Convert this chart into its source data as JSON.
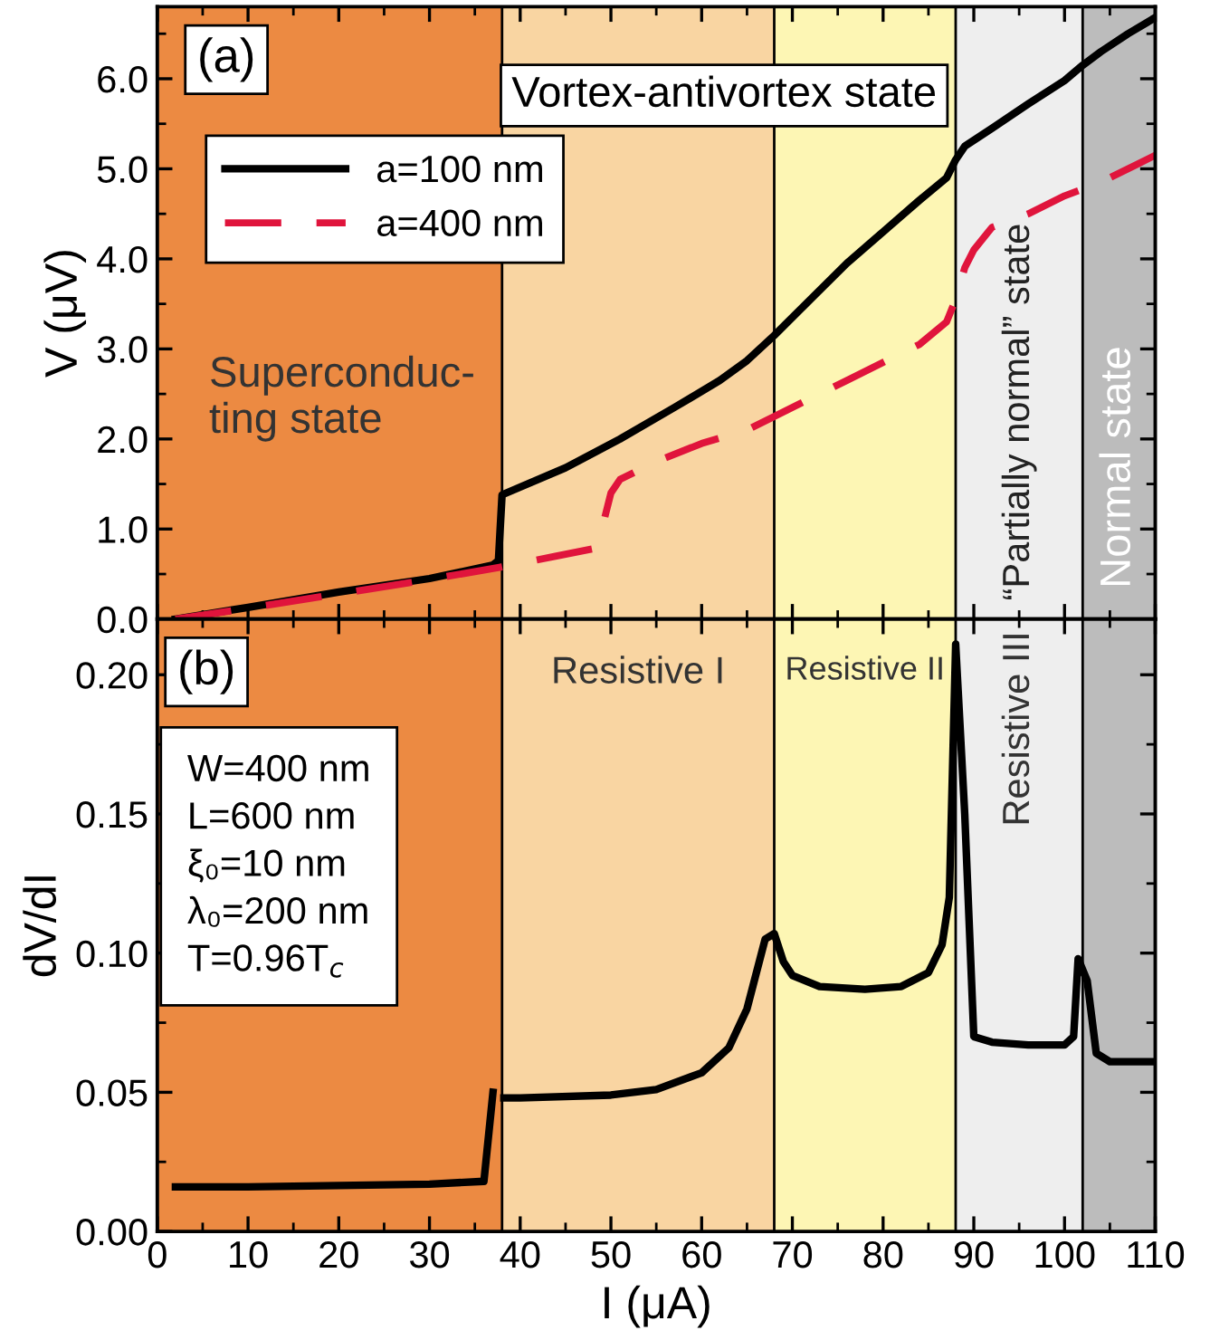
{
  "chart_data": [
    {
      "type": "line",
      "ylabel": "V (μV)",
      "xlim": [
        0,
        110
      ],
      "ylim": [
        0,
        6.8
      ],
      "tick_labels": "y",
      "grid": false,
      "legend": "top left",
      "marker": "none",
      "yticks": [
        {
          "value": 0,
          "label": "0.0"
        },
        {
          "value": 1,
          "label": "1.0"
        },
        {
          "value": 2,
          "label": "2.0"
        },
        {
          "value": 3,
          "label": "3.0"
        },
        {
          "value": 4,
          "label": "4.0"
        },
        {
          "value": 5,
          "label": "5.0"
        },
        {
          "value": 6,
          "label": "6.0"
        }
      ],
      "xticks": [
        0,
        10,
        20,
        30,
        40,
        50,
        60,
        70,
        80,
        90,
        100,
        110
      ],
      "series": [
        {
          "name": "a=100 nm",
          "color": "#000000",
          "line_style": "solid",
          "x": [
            2,
            10,
            20,
            30,
            37,
            37.6,
            38,
            45,
            51,
            57,
            62,
            65,
            68,
            72,
            76,
            80,
            84,
            87,
            88,
            89,
            92,
            96,
            100,
            102,
            104,
            107,
            110
          ],
          "values": [
            0,
            0.13,
            0.3,
            0.45,
            0.6,
            0.65,
            1.38,
            1.68,
            2.0,
            2.35,
            2.65,
            2.87,
            3.15,
            3.55,
            3.95,
            4.3,
            4.65,
            4.9,
            5.1,
            5.25,
            5.45,
            5.72,
            5.98,
            6.15,
            6.3,
            6.5,
            6.68
          ]
        },
        {
          "name": "a=400 nm",
          "color": "#e0143c",
          "line_style": "dashed",
          "x": [
            2,
            10,
            20,
            30,
            38,
            44,
            48,
            49,
            50,
            51,
            55,
            60,
            65,
            68,
            72,
            76,
            80,
            84,
            87,
            88,
            89,
            90,
            92,
            96,
            100,
            104,
            108,
            110
          ],
          "values": [
            0,
            0.12,
            0.28,
            0.44,
            0.58,
            0.7,
            0.78,
            1.0,
            1.4,
            1.55,
            1.75,
            1.95,
            2.1,
            2.25,
            2.45,
            2.65,
            2.85,
            3.05,
            3.3,
            3.55,
            3.9,
            4.1,
            4.35,
            4.5,
            4.7,
            4.85,
            5.05,
            5.15
          ]
        }
      ],
      "bands": [
        {
          "axis": "x",
          "from": 0,
          "to": 38,
          "color": "#ec8a42",
          "label": "Superconduc-\nting state"
        },
        {
          "axis": "x",
          "from": 38,
          "to": 68,
          "color": "#f9d5a2"
        },
        {
          "axis": "x",
          "from": 68,
          "to": 88,
          "color": "#fdf6b4"
        },
        {
          "axis": "x",
          "from": 88,
          "to": 102,
          "color": "#eeeeee",
          "label": "“Partially normal” state"
        },
        {
          "axis": "x",
          "from": 102,
          "to": 110,
          "color": "#bcbcbc",
          "label": "Normal state"
        }
      ],
      "ref_lines": [
        {
          "axis": "x",
          "value": 38,
          "color": "#000000"
        },
        {
          "axis": "x",
          "value": 68,
          "color": "#000000"
        },
        {
          "axis": "x",
          "value": 88,
          "color": "#000000"
        },
        {
          "axis": "x",
          "value": 102,
          "color": "#000000"
        }
      ],
      "annotations": [
        "(a)",
        "Vortex-antivortex state"
      ]
    },
    {
      "type": "line",
      "xlabel": "I (μA)",
      "ylabel": "dV/dI",
      "xlim": [
        0,
        110
      ],
      "ylim": [
        0,
        0.22
      ],
      "grid": false,
      "marker": "none",
      "yticks": [
        {
          "value": 0,
          "label": "0.00"
        },
        {
          "value": 0.05,
          "label": "0.05"
        },
        {
          "value": 0.1,
          "label": "0.10"
        },
        {
          "value": 0.15,
          "label": "0.15"
        },
        {
          "value": 0.2,
          "label": "0.20"
        }
      ],
      "xticks": [
        0,
        10,
        20,
        30,
        40,
        50,
        60,
        70,
        80,
        90,
        100,
        110
      ],
      "series": [
        {
          "color": "#000000",
          "line_style": "solid",
          "x": [
            2,
            10,
            20,
            30,
            36,
            37,
            37.6,
            38,
            38.2,
            40,
            50,
            55,
            60,
            63,
            65,
            67,
            68,
            69,
            70,
            73,
            78,
            82,
            85,
            86.5,
            87.3,
            88,
            89,
            90,
            92,
            96,
            100,
            101,
            101.5,
            102.5,
            103.5,
            105,
            110
          ],
          "values": [
            0.016,
            0.016,
            0.0165,
            0.017,
            0.018,
            0.05,
            null,
            null,
            0.048,
            0.048,
            0.049,
            0.051,
            0.057,
            0.066,
            0.08,
            0.105,
            0.107,
            0.097,
            0.092,
            0.088,
            0.087,
            0.088,
            0.093,
            0.103,
            0.12,
            0.211,
            0.15,
            0.07,
            0.068,
            0.067,
            0.067,
            0.07,
            0.098,
            0.09,
            0.064,
            0.061,
            0.061
          ]
        }
      ],
      "bands": [
        {
          "axis": "x",
          "from": 0,
          "to": 38,
          "color": "#ec8a42"
        },
        {
          "axis": "x",
          "from": 38,
          "to": 68,
          "color": "#f9d5a2",
          "label": "Resistive I"
        },
        {
          "axis": "x",
          "from": 68,
          "to": 88,
          "color": "#fdf6b4",
          "label": "Resistive II"
        },
        {
          "axis": "x",
          "from": 88,
          "to": 102,
          "color": "#eeeeee",
          "label": "Resistive III"
        },
        {
          "axis": "x",
          "from": 102,
          "to": 110,
          "color": "#bcbcbc"
        }
      ],
      "ref_lines": [
        {
          "axis": "x",
          "value": 38,
          "color": "#000000"
        },
        {
          "axis": "x",
          "value": 68,
          "color": "#000000"
        },
        {
          "axis": "x",
          "value": 88,
          "color": "#000000"
        },
        {
          "axis": "x",
          "value": 102,
          "color": "#000000"
        }
      ],
      "annotations": [
        "(b)",
        "W=400 nm\nL=600 nm\nξ₀=10 nm\nλ₀=200 nm\nT=0.96T$_{c}$"
      ]
    }
  ]
}
